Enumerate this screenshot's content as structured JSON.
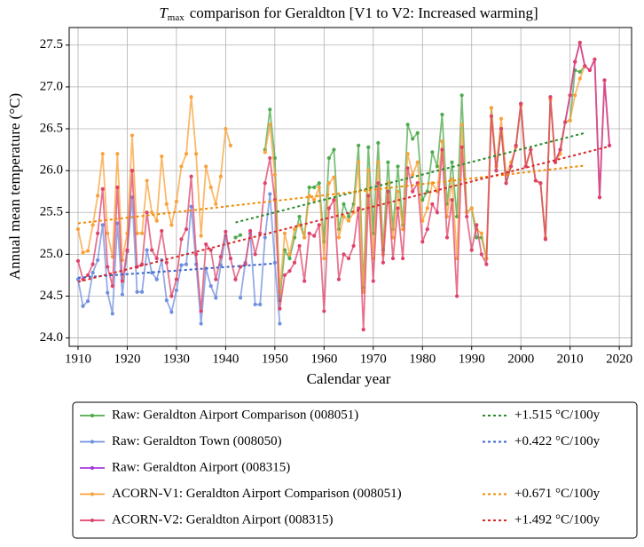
{
  "chart_data": {
    "type": "line",
    "title_symbol": "T",
    "title_subscript": "max",
    "title": "comparison for Geraldton   [V1 to V2: Increased warming]",
    "xlabel": "Calendar year",
    "ylabel": "Annual mean temperature (°C)",
    "xlim": [
      1908.2,
      2022.5
    ],
    "ylim": [
      23.9,
      27.71
    ],
    "xticks": [
      1910,
      1920,
      1930,
      1940,
      1950,
      1960,
      1970,
      1980,
      1990,
      2000,
      2010,
      2020
    ],
    "yticks": [
      {
        "value": 24,
        "label": "24.0"
      },
      24.5,
      {
        "value": 25,
        "label": "25.0"
      },
      25.5,
      {
        "value": 26,
        "label": "26.0"
      },
      26.5,
      {
        "value": 27,
        "label": "27.0"
      },
      27.5
    ],
    "grid": true,
    "series": [
      {
        "name": "Raw: Geraldton Airport Comparison (008051)",
        "color": "#4daa4d",
        "x": [
          1942,
          1943,
          1944,
          1945,
          1946,
          1947,
          1948,
          1949,
          1950,
          1951,
          1952,
          1953,
          1954,
          1955,
          1956,
          1957,
          1958,
          1959,
          1960,
          1961,
          1962,
          1963,
          1964,
          1965,
          1966,
          1967,
          1968,
          1969,
          1970,
          1971,
          1972,
          1973,
          1974,
          1975,
          1976,
          1977,
          1978,
          1979,
          1980,
          1981,
          1982,
          1983,
          1984,
          1985,
          1986,
          1987,
          1988,
          1989,
          1990,
          1991,
          1992,
          1993,
          1994,
          1995,
          1996,
          1997,
          1998,
          1999,
          2000,
          2001,
          2002,
          2003,
          2004,
          2005,
          2006,
          2007,
          2008,
          2009,
          2010,
          2011,
          2012,
          2013
        ],
        "values": [
          25.2,
          25.23,
          null,
          null,
          null,
          null,
          26.25,
          26.73,
          26.15,
          24.45,
          25.05,
          24.95,
          25.2,
          25.45,
          25.2,
          25.8,
          25.8,
          25.85,
          25.15,
          26.15,
          26.25,
          25.3,
          25.6,
          25.45,
          25.6,
          26.3,
          24.6,
          26.28,
          25.25,
          26.33,
          25.05,
          26.1,
          25.3,
          26.05,
          25.35,
          26.55,
          26.38,
          26.45,
          25.65,
          25.75,
          26.22,
          26.05,
          26.67,
          25.6,
          26.1,
          25.45,
          26.9,
          25.5,
          25.55,
          25.2,
          25.2,
          24.95,
          26.75,
          26.0,
          26.5,
          25.85,
          26.05,
          26.3,
          26.8,
          26.05,
          26.25,
          25.88,
          25.85,
          25.18,
          26.88,
          26.1,
          26.25,
          26.58,
          26.6,
          27.2,
          27.18,
          27.25
        ],
        "trend": {
          "name": "+1.515 °C/100y",
          "color": "#2a8a2a",
          "x": [
            1942,
            2013
          ],
          "values": [
            25.38,
            26.45
          ]
        }
      },
      {
        "name": "Raw: Geraldton Town (008050)",
        "color": "#6f8fdf",
        "x": [
          1910,
          1911,
          1912,
          1913,
          1914,
          1915,
          1916,
          1917,
          1918,
          1919,
          1920,
          1921,
          1922,
          1923,
          1924,
          1925,
          1926,
          1927,
          1928,
          1929,
          1930,
          1931,
          1932,
          1933,
          1934,
          1935,
          1936,
          1937,
          1938,
          1939,
          1940,
          1941,
          1942,
          1943,
          1944,
          1945,
          1946,
          1947,
          1948,
          1949,
          1950,
          1951
        ],
        "values": [
          24.7,
          24.38,
          24.44,
          24.78,
          24.93,
          25.35,
          24.54,
          24.29,
          25.37,
          24.52,
          25.03,
          25.68,
          24.55,
          24.55,
          25.05,
          24.78,
          24.7,
          24.93,
          24.45,
          24.31,
          24.57,
          24.87,
          24.88,
          25.57,
          24.88,
          24.17,
          24.83,
          24.62,
          24.48,
          24.87,
          25.22,
          24.95,
          null,
          24.48,
          24.9,
          25.25,
          24.4,
          24.4,
          25.2,
          25.72,
          24.9,
          24.17
        ],
        "trend": {
          "name": "+0.422 °C/100y",
          "color": "#3a65c8",
          "x": [
            1910,
            1950
          ],
          "values": [
            24.72,
            24.89
          ]
        }
      },
      {
        "name": "Raw: Geraldton Airport (008315)",
        "color": "#a63adb",
        "x": [
          2007,
          2008,
          2009,
          2010,
          2011,
          2012,
          2013,
          2014,
          2015,
          2016,
          2017,
          2018
        ],
        "values": [
          26.1,
          26.25,
          26.58,
          26.9,
          27.3,
          27.53,
          27.25,
          27.2,
          27.33,
          25.68,
          27.08,
          26.3
        ]
      },
      {
        "name": "ACORN-V1: Geraldton Airport Comparison (008051)",
        "color": "#f9a13a",
        "x": [
          1910,
          1911,
          1912,
          1913,
          1914,
          1915,
          1916,
          1917,
          1918,
          1919,
          1920,
          1921,
          1922,
          1923,
          1924,
          1925,
          1926,
          1927,
          1928,
          1929,
          1930,
          1931,
          1932,
          1933,
          1934,
          1935,
          1936,
          1937,
          1938,
          1939,
          1940,
          1941,
          1942,
          1943,
          1944,
          1945,
          1946,
          1947,
          1948,
          1949,
          1950,
          1951,
          1952,
          1953,
          1954,
          1955,
          1956,
          1957,
          1958,
          1959,
          1960,
          1961,
          1962,
          1963,
          1964,
          1965,
          1966,
          1967,
          1968,
          1969,
          1970,
          1971,
          1972,
          1973,
          1974,
          1975,
          1976,
          1977,
          1978,
          1979,
          1980,
          1981,
          1982,
          1983,
          1984,
          1985,
          1986,
          1987,
          1988,
          1989,
          1990,
          1991,
          1992,
          1993,
          1994,
          1995,
          1996,
          1997,
          1998,
          1999,
          2000,
          2001,
          2002,
          2003,
          2004,
          2005,
          2006,
          2007,
          2008,
          2009,
          2010,
          2011,
          2012,
          2013
        ],
        "values": [
          25.3,
          25.02,
          25.04,
          25.35,
          25.7,
          26.2,
          25.25,
          24.97,
          26.2,
          24.93,
          25.25,
          26.42,
          25.25,
          25.25,
          25.88,
          25.5,
          25.4,
          26.17,
          25.6,
          25.35,
          25.63,
          26.05,
          26.2,
          26.88,
          26.2,
          25.22,
          26.05,
          25.8,
          25.6,
          25.93,
          26.5,
          26.3,
          null,
          null,
          null,
          null,
          null,
          null,
          26.22,
          26.55,
          25.95,
          24.55,
          25.25,
          25.0,
          25.3,
          25.35,
          25.2,
          25.7,
          25.65,
          25.8,
          24.95,
          25.85,
          25.92,
          25.2,
          25.45,
          25.4,
          25.5,
          26.1,
          24.55,
          26.0,
          24.95,
          26.1,
          25.0,
          25.85,
          25.2,
          25.75,
          25.3,
          26.2,
          25.95,
          26.1,
          25.4,
          25.55,
          25.85,
          25.75,
          26.35,
          25.45,
          25.9,
          24.95,
          26.55,
          25.5,
          25.55,
          25.3,
          25.25,
          24.95,
          26.75,
          26.05,
          26.62,
          25.95,
          26.1,
          26.28,
          26.78,
          26.05,
          26.25,
          25.88,
          25.85,
          25.2,
          26.85,
          26.1,
          26.2,
          26.58,
          26.6,
          26.9,
          27.1,
          27.25
        ],
        "trend": {
          "name": "+0.671 °C/100y",
          "color": "#f08a00",
          "x": [
            1910,
            2013
          ],
          "values": [
            25.37,
            26.06
          ]
        }
      },
      {
        "name": "ACORN-V2: Geraldton Airport (008315)",
        "color": "#e0436a",
        "x": [
          1910,
          1911,
          1912,
          1913,
          1914,
          1915,
          1916,
          1917,
          1918,
          1919,
          1920,
          1921,
          1922,
          1923,
          1924,
          1925,
          1926,
          1927,
          1928,
          1929,
          1930,
          1931,
          1932,
          1933,
          1934,
          1935,
          1936,
          1937,
          1938,
          1939,
          1940,
          1941,
          1942,
          1943,
          1944,
          1945,
          1946,
          1947,
          1948,
          1949,
          1950,
          1951,
          1952,
          1953,
          1954,
          1955,
          1956,
          1957,
          1958,
          1959,
          1960,
          1961,
          1962,
          1963,
          1964,
          1965,
          1966,
          1967,
          1968,
          1969,
          1970,
          1971,
          1972,
          1973,
          1974,
          1975,
          1976,
          1977,
          1978,
          1979,
          1980,
          1981,
          1982,
          1983,
          1984,
          1985,
          1986,
          1987,
          1988,
          1989,
          1990,
          1991,
          1992,
          1993,
          1994,
          1995,
          1996,
          1997,
          1998,
          1999,
          2000,
          2001,
          2002,
          2003,
          2004,
          2005,
          2006,
          2007,
          2008,
          2009,
          2010,
          2011,
          2012,
          2013,
          2014,
          2015,
          2016,
          2017,
          2018
        ],
        "values": [
          24.92,
          24.7,
          24.75,
          24.88,
          25.25,
          25.78,
          24.85,
          24.62,
          25.8,
          24.68,
          25.05,
          26.0,
          24.85,
          24.88,
          25.5,
          25.05,
          24.95,
          25.28,
          24.9,
          24.5,
          24.7,
          25.18,
          25.3,
          25.93,
          25.0,
          24.32,
          25.12,
          25.05,
          24.7,
          24.97,
          25.27,
          24.95,
          24.7,
          24.85,
          24.88,
          25.28,
          25.0,
          25.25,
          25.85,
          26.15,
          25.65,
          24.35,
          24.75,
          24.8,
          24.9,
          25.1,
          24.68,
          25.25,
          25.22,
          25.35,
          24.32,
          25.55,
          25.65,
          24.7,
          25.0,
          24.95,
          25.1,
          25.55,
          24.1,
          25.7,
          24.68,
          25.85,
          24.9,
          25.75,
          24.95,
          25.55,
          24.95,
          26.03,
          25.75,
          25.85,
          25.15,
          25.3,
          25.6,
          25.5,
          26.25,
          25.2,
          25.65,
          24.5,
          26.28,
          25.45,
          25.05,
          25.35,
          25.0,
          24.88,
          26.65,
          26.0,
          26.5,
          25.85,
          26.05,
          26.3,
          26.8,
          26.05,
          26.25,
          25.88,
          25.85,
          25.18,
          26.88,
          26.1,
          26.25,
          26.58,
          26.9,
          27.3,
          27.53,
          27.25,
          27.2,
          27.33,
          25.68,
          27.08,
          26.3
        ],
        "trend": {
          "name": "+1.492 °C/100y",
          "color": "#d62728",
          "x": [
            1910,
            2018
          ],
          "values": [
            24.67,
            26.29
          ]
        }
      }
    ]
  }
}
